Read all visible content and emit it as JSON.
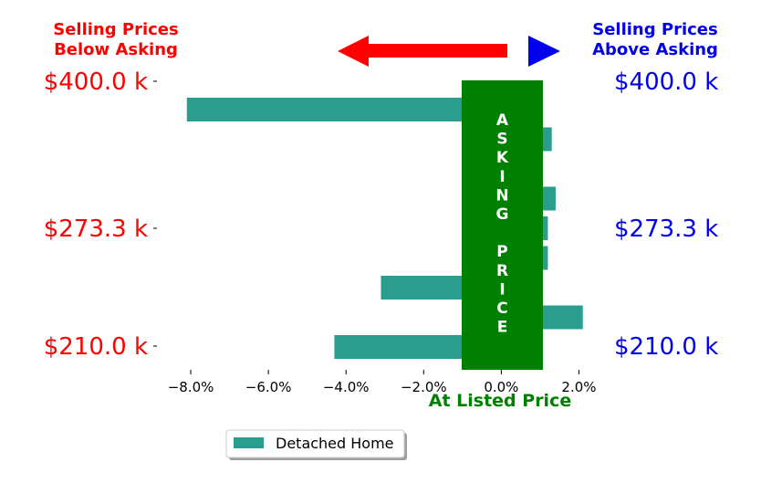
{
  "colors": {
    "bar": "#2a9d8f",
    "below": "#ff0000",
    "above": "#0000ee",
    "banner": "#008000",
    "banner_text": "#ffffff"
  },
  "header": {
    "below_line1": "Selling Prices",
    "below_line2": "Below Asking",
    "above_line1": "Selling Prices",
    "above_line2": "Above Asking"
  },
  "banner": {
    "text": "ASKING PRICE"
  },
  "chart_data": {
    "type": "bar",
    "orientation": "horizontal",
    "series": [
      {
        "name": "Detached Home",
        "values": [
          -8.1,
          1.3,
          -1.0,
          1.4,
          1.2,
          1.2,
          -3.1,
          2.1,
          -4.3
        ]
      }
    ],
    "xlim": [
      -8.8,
      2.6
    ],
    "xticks": [
      -8.0,
      -6.0,
      -4.0,
      -2.0,
      0.0,
      2.0
    ],
    "xtick_labels": [
      "−8.0%",
      "−6.0%",
      "−4.0%",
      "−2.0%",
      "0.0%",
      "2.0%"
    ],
    "xlabel": "At Listed Price",
    "ytick_labels_left": [
      "$400.0 k",
      "$273.3 k",
      "$210.0 k"
    ],
    "ytick_labels_right": [
      "$400.0 k",
      "$273.3 k",
      "$210.0 k"
    ],
    "ytick_rows": [
      0,
      4,
      8
    ],
    "legend": {
      "labels": [
        "Detached Home"
      ],
      "position": "bottom-center"
    },
    "grid": false
  }
}
